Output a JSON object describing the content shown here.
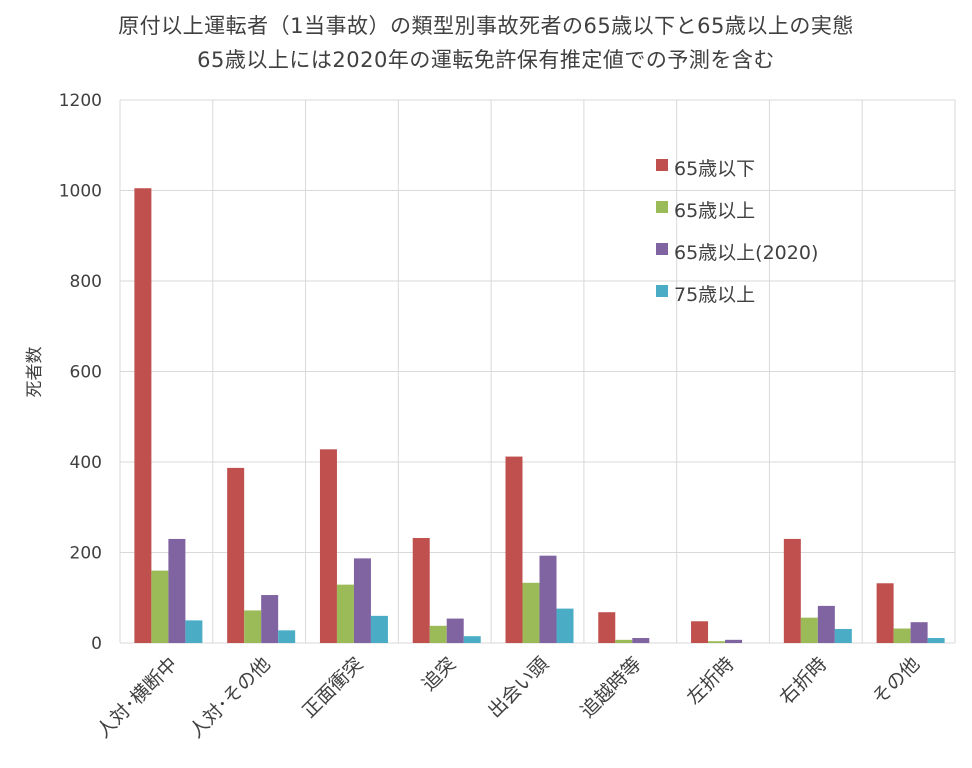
{
  "chart_data": {
    "type": "bar",
    "title": "原付以上運転者（1当事故）の類型別事故死者の65歳以下と65歳以上の実態",
    "subtitle": "65歳以上には2020年の運転免許保有推定値での予測を含む",
    "xlabel": "",
    "ylabel": "死者数",
    "ylim": [
      0,
      1200
    ],
    "yticks": [
      0,
      200,
      400,
      600,
      800,
      1000,
      1200
    ],
    "grid": true,
    "legend_position": "top-right",
    "categories": [
      "人対･横断中",
      "人対･その他",
      "正面衝突",
      "追突",
      "出会い頭",
      "追越時等",
      "左折時",
      "右折時",
      "その他"
    ],
    "series": [
      {
        "name": "65歳以下",
        "color": "#c0504d",
        "values": [
          1005,
          387,
          428,
          232,
          412,
          68,
          48,
          230,
          132
        ]
      },
      {
        "name": "65歳以上",
        "color": "#9bbb59",
        "values": [
          160,
          72,
          129,
          38,
          133,
          7,
          4,
          56,
          32
        ]
      },
      {
        "name": "65歳以上(2020)",
        "color": "#8064a2",
        "values": [
          230,
          106,
          187,
          54,
          193,
          11,
          7,
          82,
          46
        ]
      },
      {
        "name": "75歳以上",
        "color": "#4bacc6",
        "values": [
          50,
          28,
          60,
          15,
          76,
          0,
          0,
          31,
          11
        ]
      }
    ]
  }
}
